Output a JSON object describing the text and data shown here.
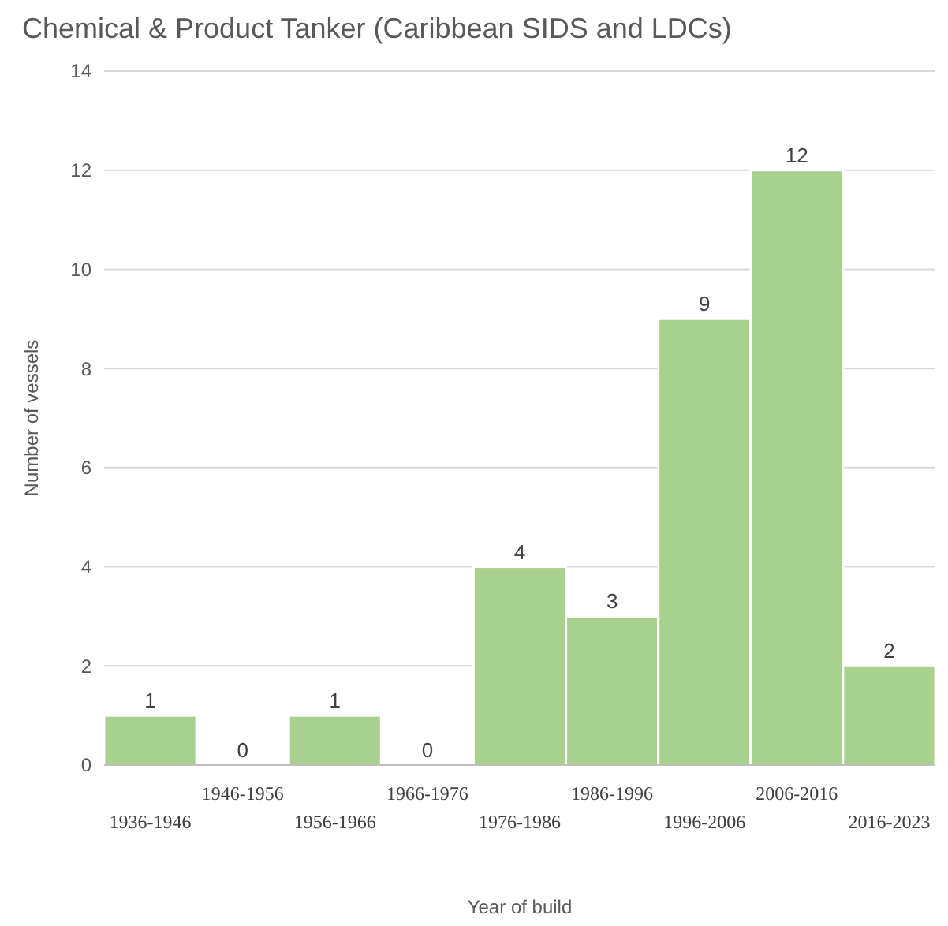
{
  "chart_data": {
    "type": "bar",
    "title": "Chemical & Product Tanker  (Caribbean SIDS and LDCs)",
    "xlabel": "Year of build",
    "ylabel": "Number of vessels",
    "categories": [
      "1936-1946",
      "1946-1956",
      "1956-1966",
      "1966-1976",
      "1976-1986",
      "1986-1996",
      "1996-2006",
      "2006-2016",
      "2016-2023"
    ],
    "values": [
      1,
      0,
      1,
      0,
      4,
      3,
      9,
      12,
      2
    ],
    "color": "#a9d18e",
    "ylim": [
      0,
      14
    ],
    "yticks": [
      0,
      2,
      4,
      6,
      8,
      10,
      12,
      14
    ],
    "grid": "y",
    "data_labels": true
  }
}
